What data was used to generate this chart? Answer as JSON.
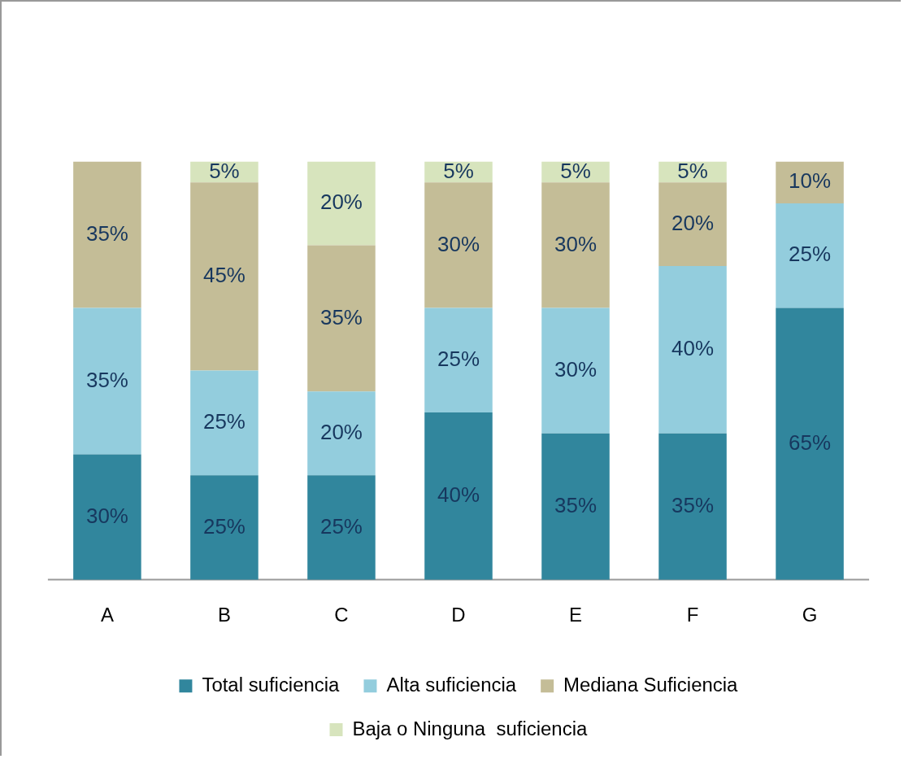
{
  "chart_data": {
    "type": "bar",
    "stacked": true,
    "categories": [
      "A",
      "B",
      "C",
      "D",
      "E",
      "F",
      "G"
    ],
    "series": [
      {
        "name": "Total suficiencia",
        "color": "#31869d",
        "values": [
          30,
          25,
          25,
          40,
          35,
          35,
          65
        ],
        "value_labels": [
          "30%",
          "25%",
          "25%",
          "40%",
          "35%",
          "35%",
          "65%"
        ]
      },
      {
        "name": "Alta suficiencia",
        "color": "#93cddd",
        "values": [
          35,
          25,
          20,
          25,
          30,
          40,
          25
        ],
        "value_labels": [
          "35%",
          "25%",
          "20%",
          "25%",
          "30%",
          "40%",
          "25%"
        ]
      },
      {
        "name": "Mediana Suficiencia",
        "color": "#c4bd97",
        "values": [
          35,
          45,
          35,
          30,
          30,
          20,
          10
        ],
        "value_labels": [
          "35%",
          "45%",
          "35%",
          "30%",
          "30%",
          "20%",
          "10%"
        ]
      },
      {
        "name": "Baja o Ninguna  suficiencia",
        "color": "#d7e4bd",
        "values": [
          null,
          5,
          20,
          5,
          5,
          5,
          null
        ],
        "value_labels": [
          null,
          "5%",
          "20%",
          "5%",
          "5%",
          "5%",
          null
        ]
      }
    ],
    "tick_labels": "x",
    "legend": "bottom"
  }
}
